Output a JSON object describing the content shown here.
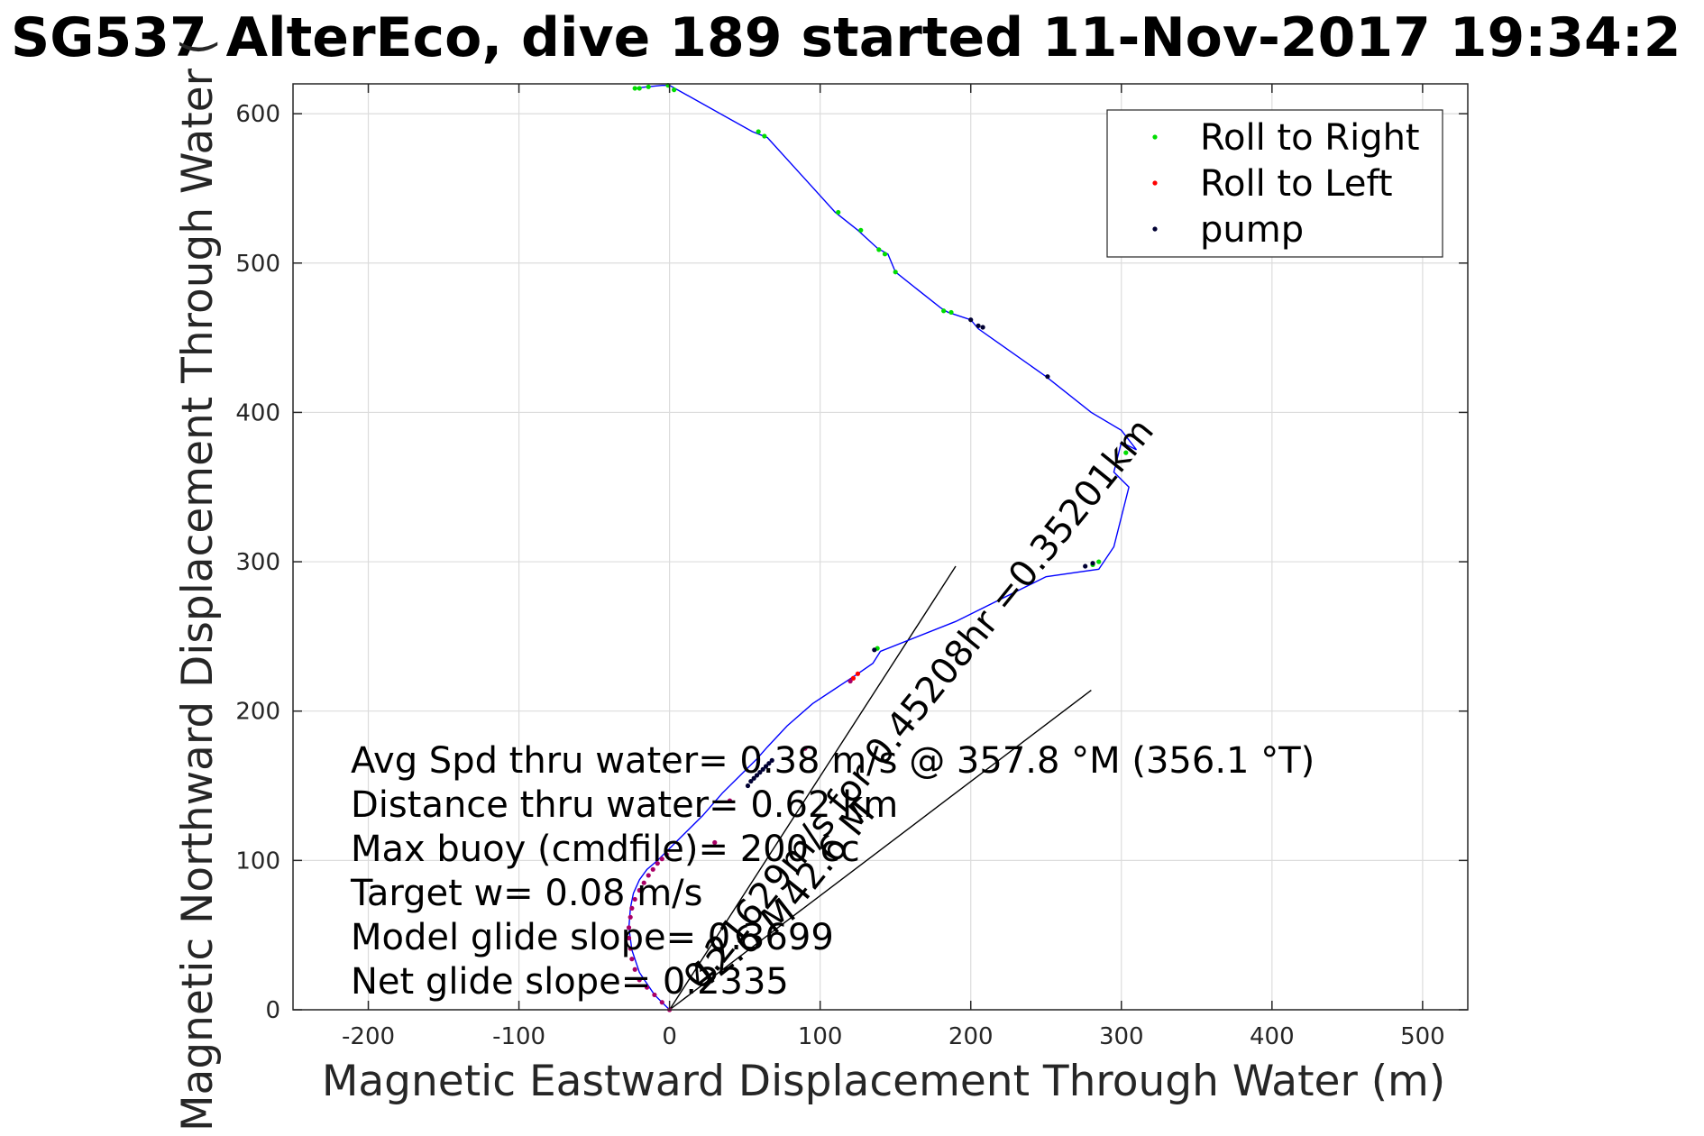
{
  "chart_data": {
    "type": "line",
    "title": "SG537 AlterEco, dive 189 started 11-Nov-2017 19:34:2",
    "xlabel": "Magnetic Eastward Displacement Through Water (m)",
    "ylabel": "Magnetic Northward Displacement Through Water (",
    "xlim": [
      -250,
      530
    ],
    "ylim": [
      0,
      620
    ],
    "xticks": [
      -200,
      -100,
      0,
      100,
      200,
      300,
      400,
      500
    ],
    "yticks": [
      0,
      100,
      200,
      300,
      400,
      500,
      600
    ],
    "grid": true,
    "legend_position": "top-right",
    "colors": {
      "track": "#0000ff",
      "roll_right": "#00dd00",
      "roll_left": "#ff0000",
      "pump": "#000033",
      "misc": "#aa0066",
      "axes": "#262626"
    },
    "legend": [
      {
        "label": "Roll to Right",
        "color": "#00dd00"
      },
      {
        "label": "Roll to Left",
        "color": "#ff0000"
      },
      {
        "label": "pump",
        "color": "#000033"
      }
    ],
    "series": [
      {
        "name": "track",
        "x": [
          0,
          -10,
          -20,
          -25,
          -27,
          -26,
          -24,
          -20,
          -15,
          -8,
          0,
          10,
          22,
          35,
          45,
          52,
          58,
          65,
          78,
          95,
          110,
          125,
          135,
          140,
          190,
          250,
          285,
          295,
          300,
          305,
          295,
          300,
          310,
          300,
          280,
          250,
          205,
          200,
          185,
          180,
          150,
          145,
          138,
          125,
          110,
          65,
          55,
          0,
          -5,
          -15,
          -23
        ],
        "y": [
          0,
          10,
          25,
          40,
          55,
          68,
          78,
          87,
          94,
          100,
          108,
          118,
          130,
          145,
          155,
          162,
          168,
          176,
          190,
          205,
          215,
          225,
          232,
          240,
          260,
          290,
          295,
          310,
          330,
          350,
          360,
          380,
          375,
          388,
          400,
          424,
          456,
          462,
          467,
          470,
          494,
          506,
          510,
          522,
          534,
          584,
          588,
          619,
          619,
          618,
          617
        ]
      },
      {
        "name": "Roll to Right",
        "x": [
          -23,
          -20,
          -14,
          -1,
          3,
          59,
          63,
          112,
          127,
          139,
          143,
          150,
          182,
          187,
          281,
          285,
          303,
          138
        ],
        "y": [
          617,
          617,
          618,
          619,
          616,
          588,
          585,
          534,
          522,
          509,
          506,
          494,
          468,
          467,
          298,
          300,
          373,
          242
        ]
      },
      {
        "name": "Roll to Left",
        "x": [
          122,
          125
        ],
        "y": [
          222,
          225
        ]
      },
      {
        "name": "pump",
        "x": [
          200,
          205,
          208,
          251,
          276,
          281,
          136,
          52,
          54,
          56,
          58,
          60,
          62,
          64,
          66,
          68
        ],
        "y": [
          462,
          458,
          457,
          424,
          297,
          299,
          241,
          150,
          153,
          155,
          157,
          159,
          161,
          163,
          165,
          167
        ]
      },
      {
        "name": "misc",
        "x": [
          0,
          -5,
          -10,
          -15,
          -20,
          -23,
          -25,
          -26,
          -27,
          -27,
          -26,
          -25,
          -23,
          -20,
          -17,
          -14,
          -11,
          -8,
          -5,
          -2,
          30,
          40,
          90,
          120
        ],
        "y": [
          0,
          5,
          10,
          15,
          20,
          27,
          34,
          41,
          48,
          55,
          62,
          68,
          74,
          80,
          85,
          90,
          94,
          98,
          101,
          104,
          112,
          140,
          175,
          220
        ]
      }
    ],
    "annotations": {
      "lines": [
        "Avg Spd thru water=  0.38 m/s @ 357.8 °M (356.1 °T)",
        "Distance thru water=  0.62 km",
        "Max buoy (cmdfile)= 200 cc",
        "Target w= 0.08 m/s",
        "Model glide slope= 0.3699",
        "Net glide slope= 0.2335"
      ],
      "rotated": [
        {
          "text": "0.21629m/s for 0.45208hr =0.35201km",
          "x": 0,
          "y": 0,
          "angle_deg": 51
        },
        {
          "text": "42.6 M",
          "x": 0,
          "y": 0,
          "angle_deg": 38
        },
        {
          "text": "42.6 M",
          "x": 65,
          "y": 55,
          "angle_deg": 51
        }
      ],
      "reference_lines": [
        {
          "x": [
            0,
            190
          ],
          "y": [
            0,
            297
          ]
        },
        {
          "x": [
            0,
            280
          ],
          "y": [
            0,
            214
          ]
        }
      ]
    }
  }
}
